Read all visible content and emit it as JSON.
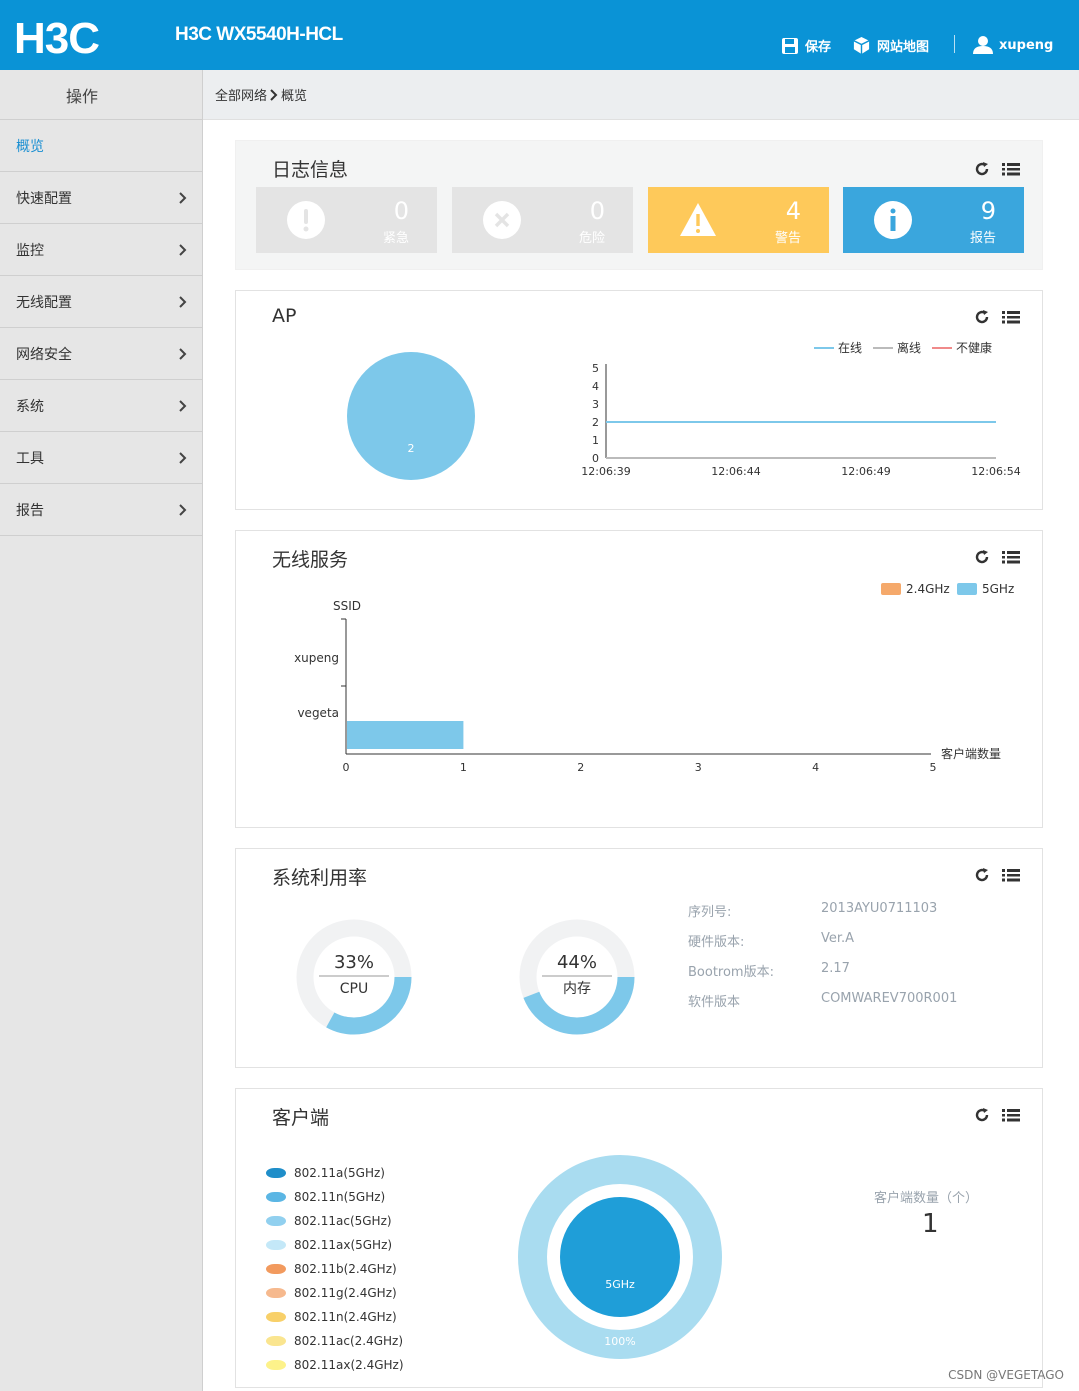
{
  "header": {
    "brand": "H3C",
    "device_name": "H3C WX5540H-HCL",
    "save_label": "保存",
    "sitemap_label": "网站地图",
    "username": "xupeng",
    "bg_color": "#0a93d6"
  },
  "sidebar": {
    "title": "操作",
    "items": [
      {
        "label": "概览",
        "active": true,
        "has_arrow": false
      },
      {
        "label": "快速配置",
        "has_arrow": true
      },
      {
        "label": "监控",
        "has_arrow": true
      },
      {
        "label": "无线配置",
        "has_arrow": true
      },
      {
        "label": "网络安全",
        "has_arrow": true
      },
      {
        "label": "系统",
        "has_arrow": true
      },
      {
        "label": "工具",
        "has_arrow": true
      },
      {
        "label": "报告",
        "has_arrow": true
      }
    ]
  },
  "breadcrumb": {
    "parent": "全部网络",
    "current": "概览"
  },
  "log_panel": {
    "title": "日志信息",
    "cards": [
      {
        "count": "0",
        "label": "紧急",
        "icon": "exclamation-icon",
        "color": "#e4e4e4"
      },
      {
        "count": "0",
        "label": "危险",
        "icon": "x-icon",
        "color": "#e4e4e4"
      },
      {
        "count": "4",
        "label": "警告",
        "icon": "warning-icon",
        "color": "#fec95a"
      },
      {
        "count": "9",
        "label": "报告",
        "icon": "info-icon",
        "color": "#3aa6dd"
      }
    ]
  },
  "ap_panel": {
    "title": "AP",
    "pie_value": "2",
    "legend": [
      {
        "name": "在线",
        "color": "#7dc8ea"
      },
      {
        "name": "离线",
        "color": "#bbbbbb"
      },
      {
        "name": "不健康",
        "color": "#f08a8a"
      }
    ]
  },
  "wireless_panel": {
    "title": "无线服务",
    "legend": [
      {
        "name": "2.4GHz",
        "color": "#f5a96b"
      },
      {
        "name": "5GHz",
        "color": "#7dc8ea"
      }
    ]
  },
  "system_panel": {
    "title": "系统利用率",
    "cpu": {
      "value": 33,
      "label": "CPU",
      "text": "33%"
    },
    "memory": {
      "value": 44,
      "label": "内存",
      "text": "44%"
    },
    "info": [
      {
        "key": "序列号:",
        "value": "2013AYU0711103"
      },
      {
        "key": "硬件版本:",
        "value": "Ver.A"
      },
      {
        "key": "Bootrom版本:",
        "value": "2.17"
      },
      {
        "key": "软件版本",
        "value": "COMWAREV700R001"
      }
    ]
  },
  "client_panel": {
    "title": "客户端",
    "legend": [
      {
        "name": "802.11a(5GHz)",
        "color": "#1f8ec9"
      },
      {
        "name": "802.11n(5GHz)",
        "color": "#5bb6e4"
      },
      {
        "name": "802.11ac(5GHz)",
        "color": "#91d0ef"
      },
      {
        "name": "802.11ax(5GHz)",
        "color": "#c4e8f8"
      },
      {
        "name": "802.11b(2.4GHz)",
        "color": "#f29a5e"
      },
      {
        "name": "802.11g(2.4GHz)",
        "color": "#f6b98e"
      },
      {
        "name": "802.11n(2.4GHz)",
        "color": "#f8d069"
      },
      {
        "name": "802.11ac(2.4GHz)",
        "color": "#fae58f"
      },
      {
        "name": "802.11ax(2.4GHz)",
        "color": "#fdf28a"
      }
    ],
    "inner_label": "5GHz",
    "outer_label": "100%",
    "count_label": "客户端数量（个）",
    "count": "1"
  },
  "watermark": "CSDN @VEGETAGO",
  "chart_data": [
    {
      "type": "line",
      "x": [
        "12:06:39",
        "12:06:44",
        "12:06:49",
        "12:06:54"
      ],
      "ylim": [
        0,
        5
      ],
      "yticks": [
        0,
        1,
        2,
        3,
        4,
        5
      ],
      "series": [
        {
          "name": "在线",
          "values": [
            2,
            2,
            2,
            2
          ]
        },
        {
          "name": "离线",
          "values": [
            0,
            0,
            0,
            0
          ]
        },
        {
          "name": "不健康",
          "values": [
            0,
            0,
            0,
            0
          ]
        }
      ],
      "legend_position": "top-right"
    },
    {
      "type": "bar",
      "orientation": "horizontal",
      "ylabel": "SSID",
      "xlabel": "客户端数量",
      "categories": [
        "vegeta",
        "xupeng"
      ],
      "xlim": [
        0,
        5
      ],
      "xticks": [
        0,
        1,
        2,
        3,
        4,
        5
      ],
      "series": [
        {
          "name": "2.4GHz",
          "values": [
            0,
            0
          ]
        },
        {
          "name": "5GHz",
          "values": [
            1,
            0
          ]
        }
      ],
      "legend_position": "top-right"
    },
    {
      "type": "pie",
      "categories": [
        "在线"
      ],
      "values": [
        2
      ]
    },
    {
      "type": "pie",
      "categories": [
        "5GHz"
      ],
      "values": [
        100
      ]
    }
  ]
}
